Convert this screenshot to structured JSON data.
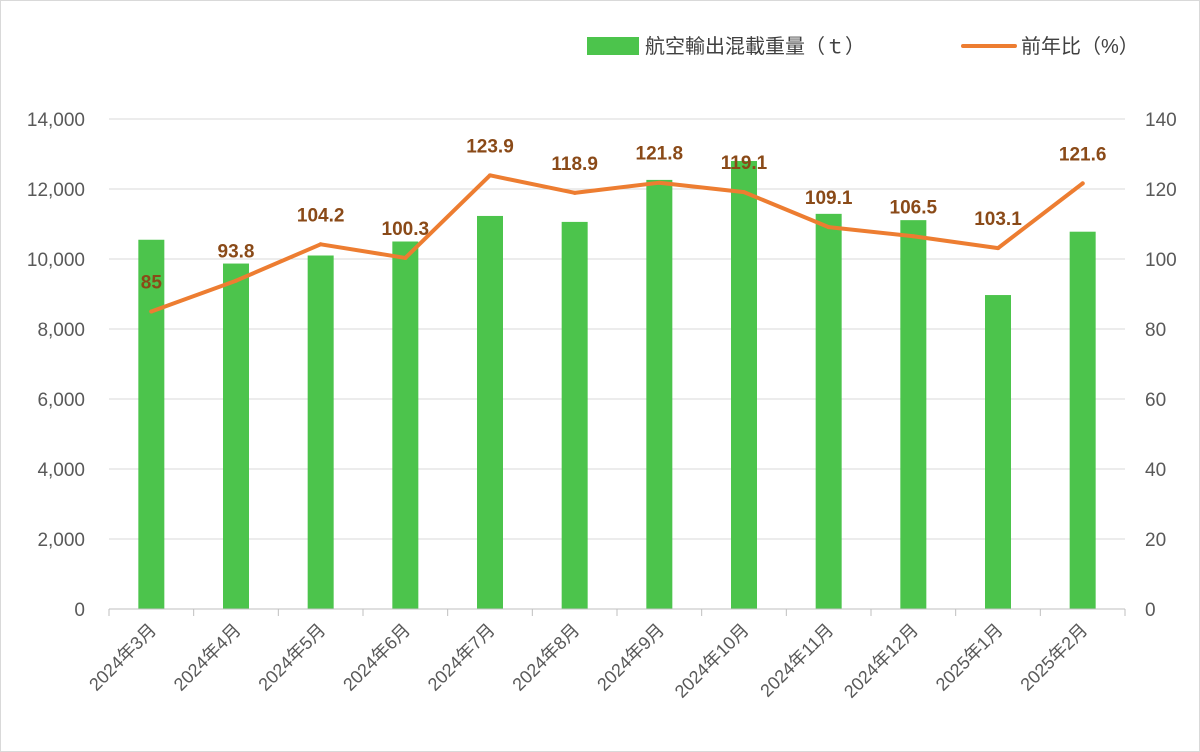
{
  "chart_data": {
    "type": "bar",
    "title": "",
    "categories": [
      "2024年3月",
      "2024年4月",
      "2024年5月",
      "2024年6月",
      "2024年7月",
      "2024年8月",
      "2024年9月",
      "2024年10月",
      "2024年11月",
      "2024年12月",
      "2025年1月",
      "2025年2月"
    ],
    "series": [
      {
        "name": "航空輸出混載重量（ｔ）",
        "type": "bar",
        "axis": "left",
        "color": "#4cc44c",
        "values": [
          10550,
          9870,
          10100,
          10500,
          11230,
          11060,
          12260,
          12800,
          11290,
          11110,
          8970,
          10780
        ]
      },
      {
        "name": "前年比（%）",
        "type": "line",
        "axis": "right",
        "color": "#ed7d31",
        "values": [
          85,
          93.8,
          104.2,
          100.3,
          123.9,
          118.9,
          121.8,
          119.1,
          109.1,
          106.5,
          103.1,
          121.6
        ],
        "labels": [
          "85",
          "93.8",
          "104.2",
          "100.3",
          "123.9",
          "118.9",
          "121.8",
          "119.1",
          "109.1",
          "106.5",
          "103.1",
          "121.6"
        ]
      }
    ],
    "y_left": {
      "ylim": [
        0,
        14000
      ],
      "ticks": [
        0,
        2000,
        4000,
        6000,
        8000,
        10000,
        12000,
        14000
      ],
      "tick_labels": [
        "0",
        "2,000",
        "4,000",
        "6,000",
        "8,000",
        "10,000",
        "12,000",
        "14,000"
      ]
    },
    "y_right": {
      "ylim": [
        0,
        140
      ],
      "ticks": [
        0,
        20,
        40,
        60,
        80,
        100,
        120,
        140
      ],
      "tick_labels": [
        "0",
        "20",
        "40",
        "60",
        "80",
        "100",
        "120",
        "140"
      ]
    },
    "grid": true,
    "legend_position": "top-right"
  }
}
